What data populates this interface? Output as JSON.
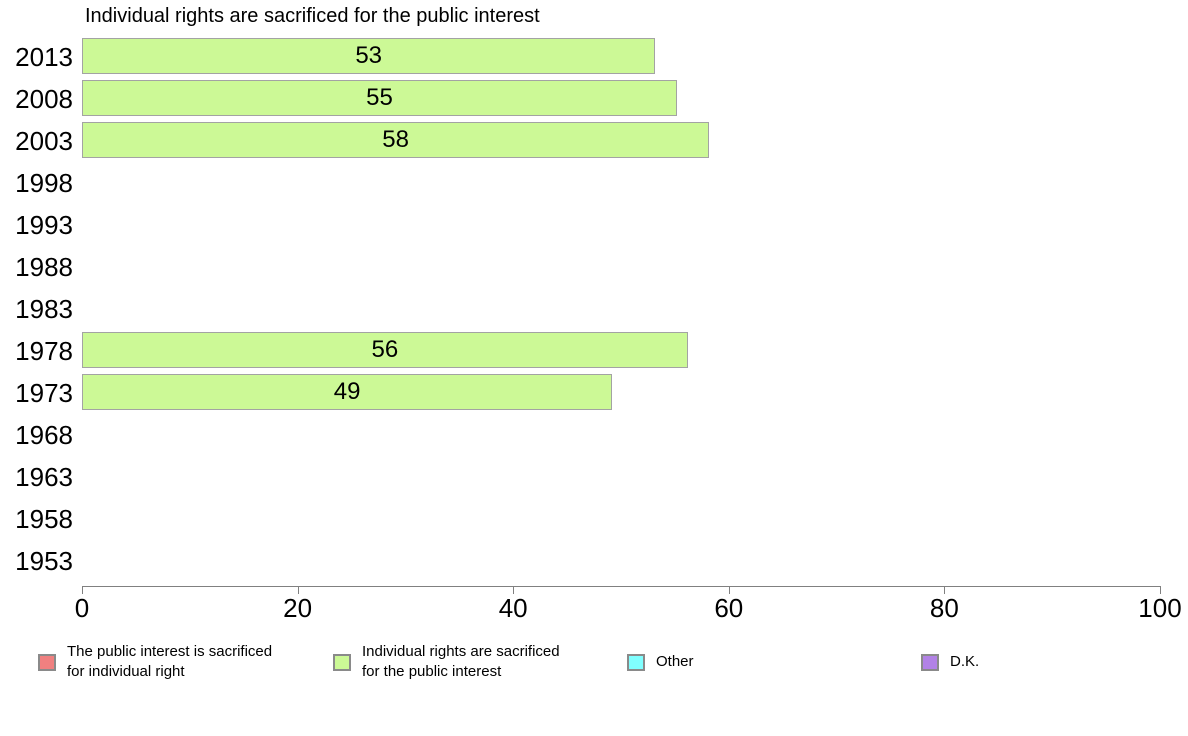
{
  "chart_data": {
    "type": "bar",
    "orientation": "horizontal",
    "title": "Individual rights are sacrificed for the public interest",
    "categories": [
      "2013",
      "2008",
      "2003",
      "1998",
      "1993",
      "1988",
      "1983",
      "1978",
      "1973",
      "1968",
      "1963",
      "1958",
      "1953"
    ],
    "values": [
      53,
      55,
      58,
      null,
      null,
      null,
      null,
      56,
      49,
      null,
      null,
      null,
      null
    ],
    "series_name": "Individual rights are sacrificed for the public interest",
    "xlabel": "",
    "ylabel": "",
    "xlim": [
      0,
      100
    ],
    "x_ticks": [
      0,
      20,
      40,
      60,
      80,
      100
    ],
    "grid": "off",
    "bar_color": "#ccf996",
    "bar_border_color": "#a3a3a3",
    "legend_position": "bottom",
    "legend": [
      {
        "label": "The public interest is sacrificed for individual right",
        "label_lines": [
          "The public interest is sacrificed",
          "for individual right"
        ],
        "color": "#f08080"
      },
      {
        "label": "Individual rights are sacrificed for the public interest",
        "label_lines": [
          "Individual rights are sacrificed",
          "for the public interest"
        ],
        "color": "#ccf996"
      },
      {
        "label": "Other",
        "label_lines": [
          "Other"
        ],
        "color": "#80ffff"
      },
      {
        "label": "D.K.",
        "label_lines": [
          "D.K."
        ],
        "color": "#b282e6"
      }
    ]
  }
}
